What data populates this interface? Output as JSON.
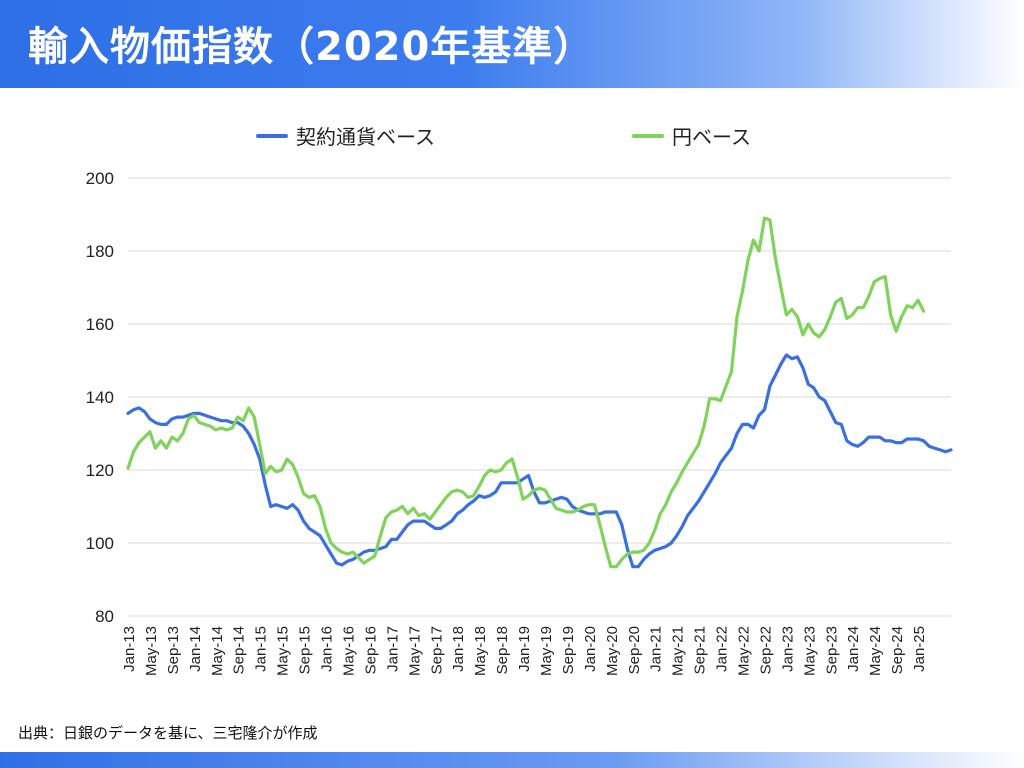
{
  "page": {
    "title": "輸入物価指数（2020年基準）",
    "source": "出典：日銀のデータを基に、三宅隆介が作成"
  },
  "colors": {
    "contract_currency": "#3a6fe0",
    "yen": "#7fd35a",
    "grid": "#d9d9d9",
    "title_bar": "#2f6fe6"
  },
  "chart_data": {
    "type": "line",
    "title": "",
    "xlabel": "",
    "ylabel": "",
    "ylim": [
      80,
      200
    ],
    "yticks": [
      80,
      100,
      120,
      140,
      160,
      180,
      200
    ],
    "grid": "horizontal",
    "legend_position": "top",
    "x_tick_labels": [
      "Jan-13",
      "May-13",
      "Sep-13",
      "Jan-14",
      "May-14",
      "Sep-14",
      "Jan-15",
      "May-15",
      "Sep-15",
      "Jan-16",
      "May-16",
      "Sep-16",
      "Jan-17",
      "May-17",
      "Sep-17",
      "Jan-18",
      "May-18",
      "Sep-18",
      "Jan-19",
      "May-19",
      "Sep-19",
      "Jan-20",
      "May-20",
      "Sep-20",
      "Jan-21",
      "May-21",
      "Sep-21",
      "Jan-22",
      "May-22",
      "Sep-22",
      "Jan-23",
      "May-23",
      "Sep-23",
      "Jan-24",
      "May-24",
      "Sep-24",
      "Jan-25"
    ],
    "x_start": "2013-01",
    "series": [
      {
        "name": "契約通貨ベース",
        "color": "#3a6fe0",
        "values": [
          135.5,
          136.5,
          137,
          136,
          134,
          133,
          132.5,
          132.5,
          134,
          134.5,
          134.5,
          135,
          135.5,
          135.5,
          135,
          134.5,
          134,
          133.5,
          133.5,
          133,
          133,
          132,
          130,
          127,
          123,
          116,
          110,
          110.5,
          110,
          109.5,
          110.5,
          109,
          106,
          104,
          103,
          102,
          99.5,
          97,
          94.5,
          94,
          95,
          95.5,
          96.5,
          97.5,
          98,
          98,
          98.5,
          99,
          101,
          101,
          103,
          105,
          106,
          106,
          106,
          105,
          104,
          104,
          105,
          106,
          108,
          109,
          110.5,
          111.5,
          113,
          112.5,
          113,
          114,
          116.5,
          116.5,
          116.5,
          116.5,
          117.5,
          118.5,
          114,
          111,
          111,
          111.5,
          112,
          112.5,
          112,
          110,
          109,
          108.5,
          108,
          108,
          108,
          108.5,
          108.5,
          108.5,
          105,
          98.5,
          93.5,
          93.5,
          95.5,
          97,
          98,
          98.5,
          99,
          100,
          102,
          104.5,
          107.5,
          109.5,
          111.5,
          114,
          116.5,
          119,
          122,
          124,
          126,
          130,
          132.5,
          132.5,
          131.5,
          135,
          136.5,
          143,
          146,
          149,
          151.5,
          150.5,
          151,
          148,
          143.5,
          142.5,
          140,
          139,
          136,
          133,
          132.5,
          128,
          127,
          126.5,
          127.5,
          129,
          129,
          129,
          128,
          128,
          127.5,
          127.5,
          128.5,
          128.5,
          128.5,
          128,
          126.5,
          126,
          125.5,
          125,
          125.5
        ]
      },
      {
        "name": "円ベース",
        "color": "#7fd35a",
        "values": [
          120.5,
          125,
          127.5,
          129,
          130.5,
          126,
          128,
          126,
          129,
          128,
          130,
          134,
          135,
          133,
          132.5,
          132,
          131,
          131.5,
          131,
          131.5,
          134.5,
          133.5,
          137,
          134.5,
          127,
          119,
          121,
          119.5,
          120,
          123,
          121.5,
          118,
          113.5,
          112.5,
          113,
          110,
          104,
          100,
          98.5,
          97.5,
          97,
          97.5,
          96,
          94.5,
          95.5,
          96.5,
          102,
          107,
          108.5,
          109,
          110,
          108,
          109.5,
          107.5,
          108,
          106.5,
          108.5,
          110.5,
          112.5,
          114,
          114.5,
          114,
          112.5,
          113,
          115.5,
          118.5,
          120,
          119.5,
          120,
          122,
          123,
          118,
          112,
          113,
          114.5,
          115,
          114.5,
          112,
          109.5,
          109,
          108.5,
          108.5,
          109,
          110,
          110.5,
          110.5,
          105,
          99,
          93.5,
          93.5,
          95.5,
          97,
          97.5,
          97.5,
          98,
          100,
          103.5,
          108,
          110.5,
          114,
          116.5,
          119.5,
          122,
          124.5,
          127,
          132,
          139.5,
          139.5,
          139,
          143,
          147,
          162,
          169,
          177.5,
          183,
          180,
          189,
          188.5,
          178,
          170,
          162.5,
          164,
          162,
          157,
          160,
          157.5,
          156.5,
          158.5,
          162,
          166,
          167,
          161.5,
          162.5,
          164.5,
          164.5,
          167.5,
          171.5,
          172.5,
          173,
          162.5,
          158,
          162,
          165,
          164.5,
          166.5,
          163.5
        ]
      }
    ]
  }
}
